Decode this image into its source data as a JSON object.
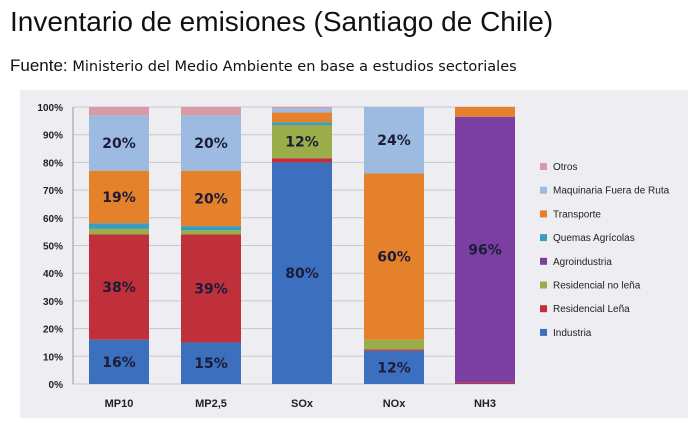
{
  "title": "Inventario de emisiones (Santiago de Chile)",
  "subtitle": {
    "label": "Fuente:",
    "source": "Ministerio del Medio Ambiente en base a estudios sectoriales"
  },
  "chart_data": {
    "type": "bar",
    "stacked": true,
    "percent": true,
    "categories": [
      "MP10",
      "MP2,5",
      "SOx",
      "NOx",
      "NH3"
    ],
    "ylim": [
      0,
      100
    ],
    "yticks": [
      "0%",
      "10%",
      "20%",
      "30%",
      "40%",
      "50%",
      "60%",
      "70%",
      "80%",
      "90%",
      "100%"
    ],
    "legend_position": "right",
    "series": [
      {
        "name": "Industria",
        "color": "#3d6fbf",
        "values": [
          16,
          15,
          80,
          12,
          0
        ]
      },
      {
        "name": "Residencial Leña",
        "color": "#c0303a",
        "values": [
          38,
          39,
          1.5,
          0.5,
          0.5
        ]
      },
      {
        "name": "Residencial no leña",
        "color": "#9bad48",
        "values": [
          2,
          1.5,
          12,
          3.5,
          0
        ]
      },
      {
        "name": "Agroindustria",
        "color": "#7a3fa0",
        "values": [
          0,
          0,
          0,
          0,
          96
        ]
      },
      {
        "name": "Quemas Agrícolas",
        "color": "#3a9cc0",
        "values": [
          2,
          1.5,
          1,
          0,
          0
        ]
      },
      {
        "name": "Transporte",
        "color": "#e5812a",
        "values": [
          19,
          20,
          3.5,
          60,
          3.5
        ]
      },
      {
        "name": "Maquinaria Fuera de Ruta",
        "color": "#9dbbe0",
        "values": [
          20,
          20,
          1.5,
          24,
          0
        ]
      },
      {
        "name": "Otros",
        "color": "#d99aa6",
        "values": [
          3,
          3,
          0.5,
          0,
          0
        ]
      }
    ],
    "data_labels": [
      {
        "category": "MP10",
        "series": "Industria",
        "text": "16%"
      },
      {
        "category": "MP10",
        "series": "Residencial Leña",
        "text": "38%"
      },
      {
        "category": "MP10",
        "series": "Transporte",
        "text": "19%"
      },
      {
        "category": "MP10",
        "series": "Maquinaria Fuera de Ruta",
        "text": "20%"
      },
      {
        "category": "MP2,5",
        "series": "Industria",
        "text": "15%"
      },
      {
        "category": "MP2,5",
        "series": "Residencial Leña",
        "text": "39%"
      },
      {
        "category": "MP2,5",
        "series": "Transporte",
        "text": "20%"
      },
      {
        "category": "MP2,5",
        "series": "Maquinaria Fuera de Ruta",
        "text": "20%"
      },
      {
        "category": "SOx",
        "series": "Industria",
        "text": "80%"
      },
      {
        "category": "SOx",
        "series": "Residencial no leña",
        "text": "12%"
      },
      {
        "category": "NOx",
        "series": "Industria",
        "text": "12%"
      },
      {
        "category": "NOx",
        "series": "Transporte",
        "text": "60%"
      },
      {
        "category": "NOx",
        "series": "Maquinaria Fuera de Ruta",
        "text": "24%"
      },
      {
        "category": "NH3",
        "series": "Agroindustria",
        "text": "96%"
      }
    ]
  }
}
